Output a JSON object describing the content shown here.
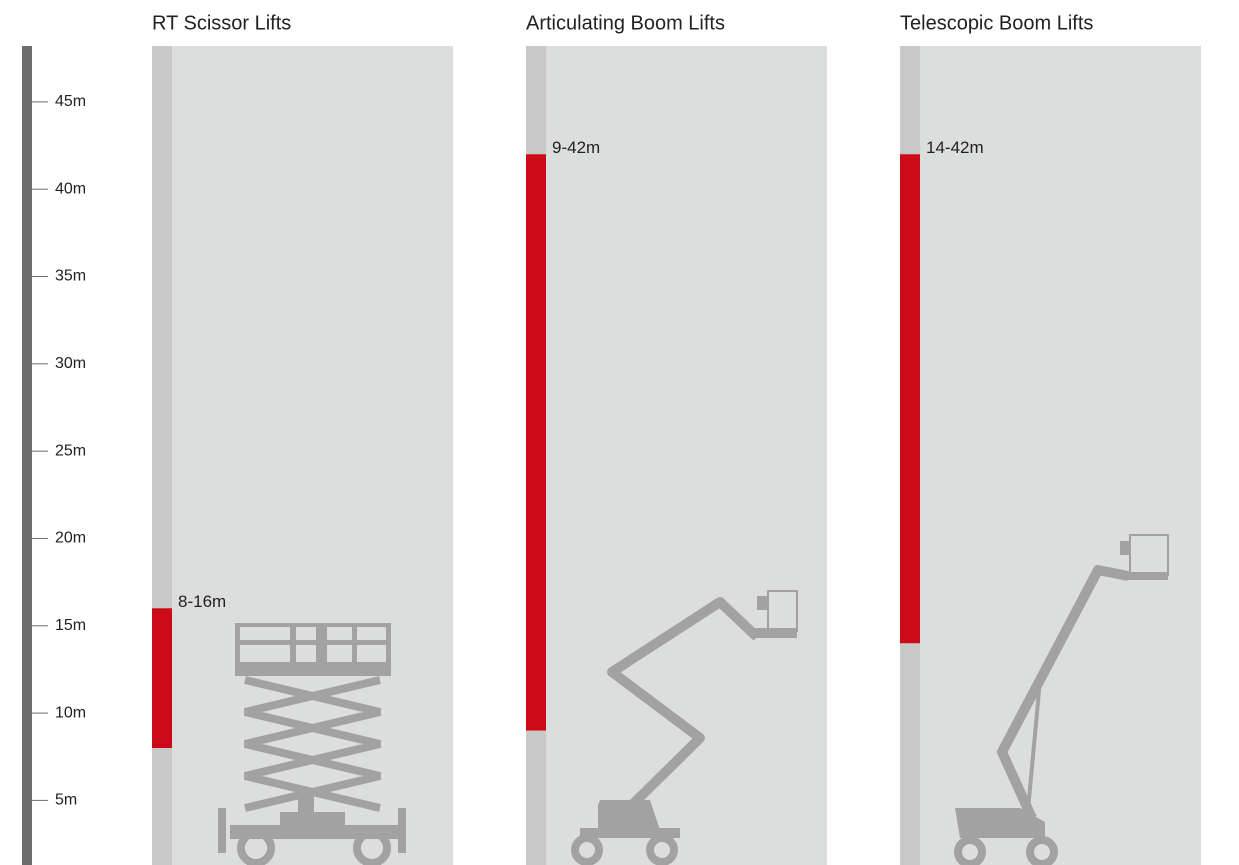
{
  "chart_data": {
    "type": "range-bar",
    "categories": [
      "RT Scissor Lifts",
      "Articulating Boom Lifts",
      "Telescopic Boom Lifts"
    ],
    "low": [
      8,
      9,
      14
    ],
    "high": [
      16,
      42,
      42
    ],
    "value_labels": [
      "8-16m",
      "9-42m",
      "14-42m"
    ],
    "color": "#cc0a17",
    "ylim": [
      1.3,
      48.2
    ],
    "yticks": [
      {
        "value": 5,
        "label": "5m"
      },
      {
        "value": 10,
        "label": "10m"
      },
      {
        "value": 15,
        "label": "15m"
      },
      {
        "value": 20,
        "label": "20m"
      },
      {
        "value": 25,
        "label": "25m"
      },
      {
        "value": 30,
        "label": "30m"
      },
      {
        "value": 35,
        "label": "35m"
      },
      {
        "value": 40,
        "label": "40m"
      },
      {
        "value": 45,
        "label": "45m"
      }
    ]
  }
}
